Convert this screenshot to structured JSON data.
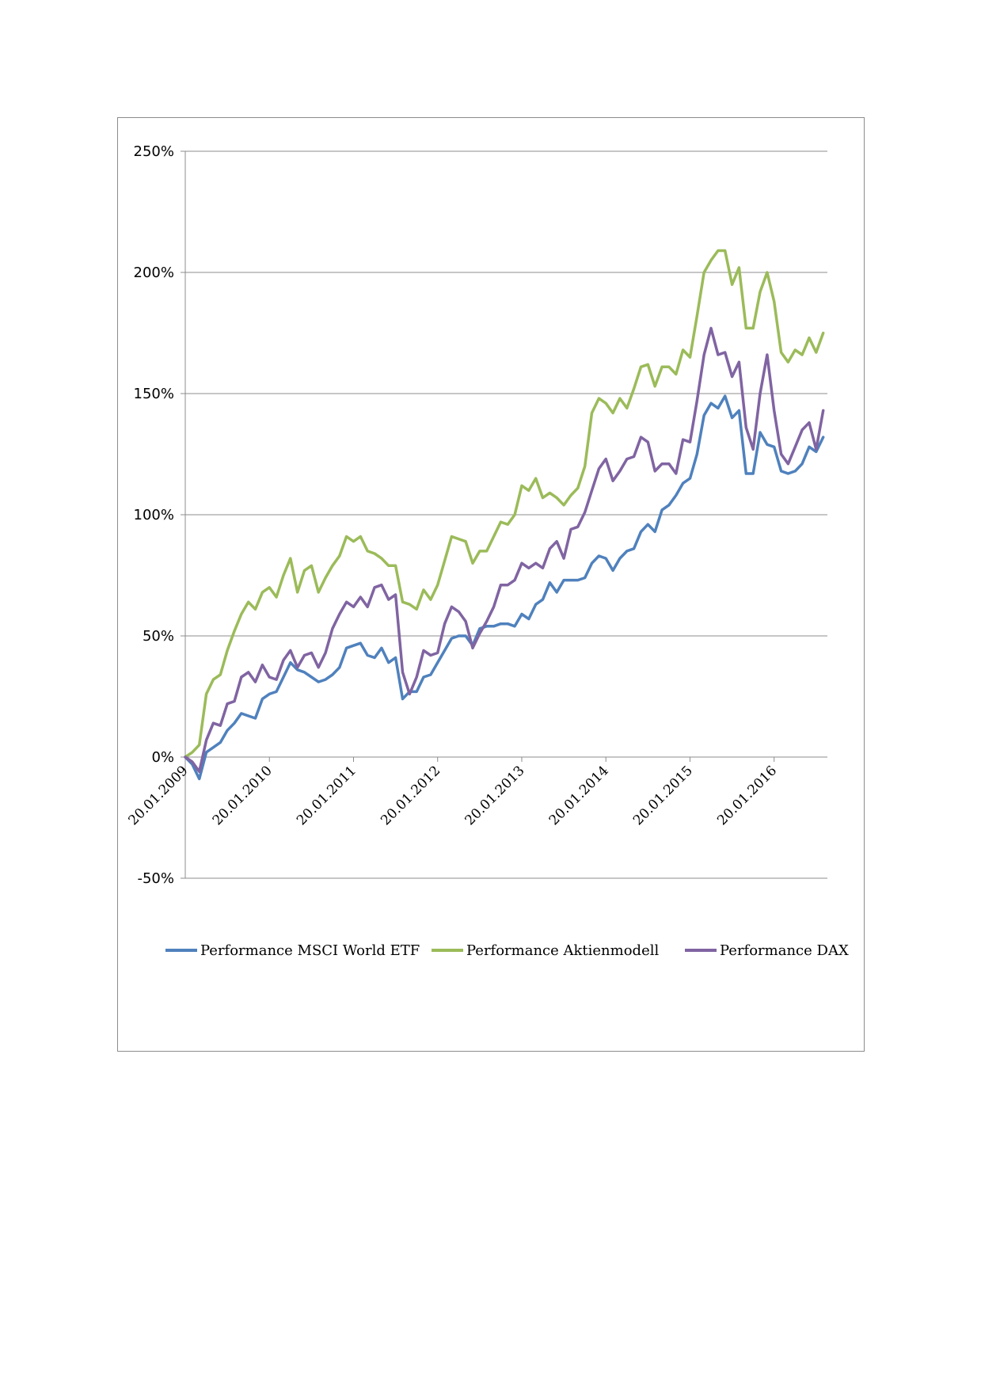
{
  "chart_data": {
    "type": "line",
    "title": "",
    "xlabel": "",
    "ylabel": "",
    "ylim": [
      -0.5,
      2.5
    ],
    "y_ticks": [
      -0.5,
      0,
      0.5,
      1.0,
      1.5,
      2.0,
      2.5
    ],
    "y_tick_labels": [
      "-50%",
      "0%",
      "50%",
      "100%",
      "150%",
      "200%",
      "250%"
    ],
    "x_tick_labels": [
      "20.01.2009",
      "20.01.2010",
      "20.01.2011",
      "20.01.2012",
      "20.01.2013",
      "20.01.2014",
      "20.01.2015",
      "20.01.2016"
    ],
    "x_start": "2009-01-20",
    "x_step": "month",
    "grid": "horizontal",
    "legend_position": "bottom",
    "series": [
      {
        "name": "Performance MSCI World ETF",
        "color": "#4f81bd",
        "values": [
          0,
          -0.03,
          -0.09,
          0.02,
          0.04,
          0.06,
          0.11,
          0.14,
          0.18,
          0.17,
          0.16,
          0.24,
          0.26,
          0.27,
          0.33,
          0.39,
          0.36,
          0.35,
          0.33,
          0.31,
          0.32,
          0.34,
          0.37,
          0.45,
          0.46,
          0.47,
          0.42,
          0.41,
          0.45,
          0.39,
          0.41,
          0.24,
          0.27,
          0.27,
          0.33,
          0.34,
          0.39,
          0.44,
          0.49,
          0.5,
          0.5,
          0.46,
          0.53,
          0.54,
          0.54,
          0.55,
          0.55,
          0.54,
          0.59,
          0.57,
          0.63,
          0.65,
          0.72,
          0.68,
          0.73,
          0.73,
          0.73,
          0.74,
          0.8,
          0.83,
          0.82,
          0.77,
          0.82,
          0.85,
          0.86,
          0.93,
          0.96,
          0.93,
          1.02,
          1.04,
          1.08,
          1.13,
          1.15,
          1.25,
          1.41,
          1.46,
          1.44,
          1.49,
          1.4,
          1.43,
          1.17,
          1.17,
          1.34,
          1.29,
          1.28,
          1.18,
          1.17,
          1.18,
          1.21,
          1.28,
          1.26,
          1.32
        ]
      },
      {
        "name": "Performance Aktienmodell",
        "color": "#9bbb59",
        "values": [
          0,
          0.02,
          0.05,
          0.26,
          0.32,
          0.34,
          0.44,
          0.52,
          0.59,
          0.64,
          0.61,
          0.68,
          0.7,
          0.66,
          0.75,
          0.82,
          0.68,
          0.77,
          0.79,
          0.68,
          0.74,
          0.79,
          0.83,
          0.91,
          0.89,
          0.91,
          0.85,
          0.84,
          0.82,
          0.79,
          0.79,
          0.64,
          0.63,
          0.61,
          0.69,
          0.65,
          0.71,
          0.81,
          0.91,
          0.9,
          0.89,
          0.8,
          0.85,
          0.85,
          0.91,
          0.97,
          0.96,
          1.0,
          1.12,
          1.1,
          1.15,
          1.07,
          1.09,
          1.07,
          1.04,
          1.08,
          1.11,
          1.2,
          1.42,
          1.48,
          1.46,
          1.42,
          1.48,
          1.44,
          1.52,
          1.61,
          1.62,
          1.53,
          1.61,
          1.61,
          1.58,
          1.68,
          1.65,
          1.82,
          2.0,
          2.05,
          2.09,
          2.09,
          1.95,
          2.02,
          1.77,
          1.77,
          1.92,
          2.0,
          1.88,
          1.67,
          1.63,
          1.68,
          1.66,
          1.73,
          1.67,
          1.75
        ]
      },
      {
        "name": "Performance DAX",
        "color": "#8064a2",
        "values": [
          0,
          -0.02,
          -0.06,
          0.07,
          0.14,
          0.13,
          0.22,
          0.23,
          0.33,
          0.35,
          0.31,
          0.38,
          0.33,
          0.32,
          0.4,
          0.44,
          0.37,
          0.42,
          0.43,
          0.37,
          0.43,
          0.53,
          0.59,
          0.64,
          0.62,
          0.66,
          0.62,
          0.7,
          0.71,
          0.65,
          0.67,
          0.35,
          0.26,
          0.33,
          0.44,
          0.42,
          0.43,
          0.55,
          0.62,
          0.6,
          0.56,
          0.45,
          0.51,
          0.56,
          0.62,
          0.71,
          0.71,
          0.73,
          0.8,
          0.78,
          0.8,
          0.78,
          0.86,
          0.89,
          0.82,
          0.94,
          0.95,
          1.01,
          1.1,
          1.19,
          1.23,
          1.14,
          1.18,
          1.23,
          1.24,
          1.32,
          1.3,
          1.18,
          1.21,
          1.21,
          1.17,
          1.31,
          1.3,
          1.47,
          1.66,
          1.77,
          1.66,
          1.67,
          1.57,
          1.63,
          1.36,
          1.27,
          1.5,
          1.66,
          1.43,
          1.25,
          1.21,
          1.28,
          1.35,
          1.38,
          1.27,
          1.43
        ]
      }
    ]
  }
}
